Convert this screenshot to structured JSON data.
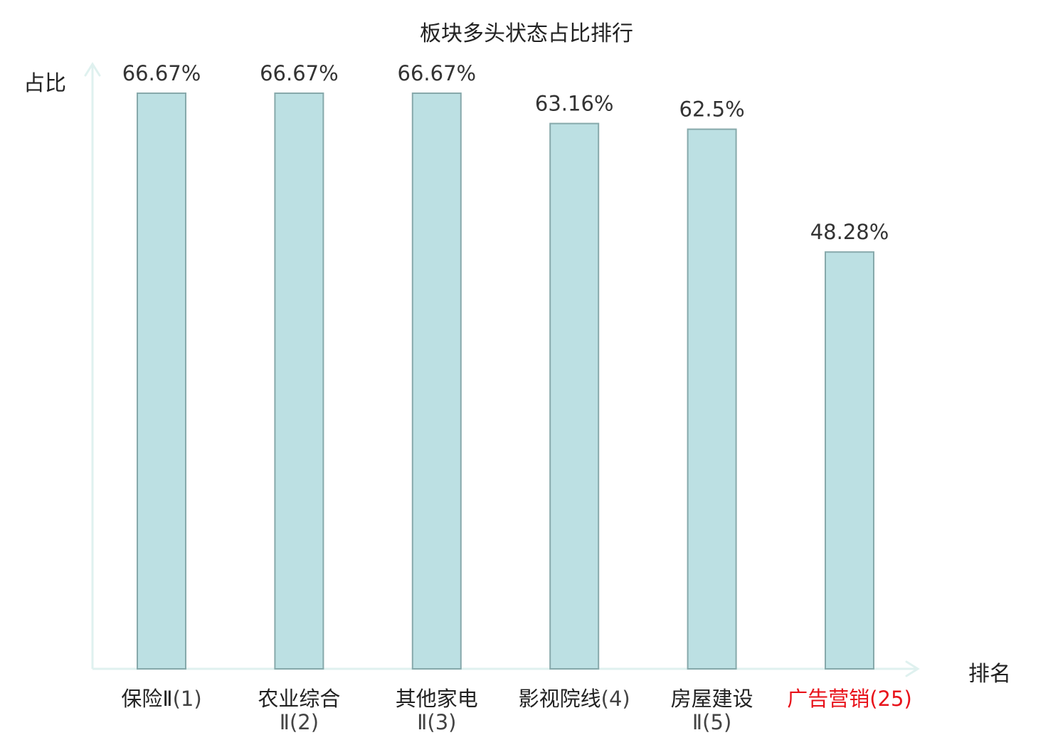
{
  "chart_data": {
    "type": "bar",
    "title": "板块多头状态占比排行",
    "xlabel": "排名",
    "ylabel": "占比",
    "ylim": [
      0,
      70
    ],
    "categories": [
      {
        "name": "保险Ⅱ",
        "rank": "(1)",
        "highlight": false
      },
      {
        "name": "农业综合",
        "rank": "Ⅱ(2)",
        "highlight": false
      },
      {
        "name": "其他家电",
        "rank": "Ⅱ(3)",
        "highlight": false
      },
      {
        "name": "影视院线",
        "rank": "(4)",
        "highlight": false
      },
      {
        "name": "房屋建设",
        "rank": "Ⅱ(5)",
        "highlight": false
      },
      {
        "name": "广告营销",
        "rank": "(25)",
        "highlight": true
      }
    ],
    "values": [
      66.67,
      66.67,
      66.67,
      63.16,
      62.5,
      48.28
    ],
    "value_labels": [
      "66.67%",
      "66.67%",
      "66.67%",
      "63.16%",
      "62.5%",
      "48.28%"
    ],
    "grid": false,
    "legend": "none"
  },
  "colors": {
    "bar_fill": "#bce0e3",
    "bar_stroke": "#87a9ab",
    "axis": "#dff1ef",
    "text": "#222222",
    "rank_text": "#444444",
    "highlight": "#e8121a"
  }
}
